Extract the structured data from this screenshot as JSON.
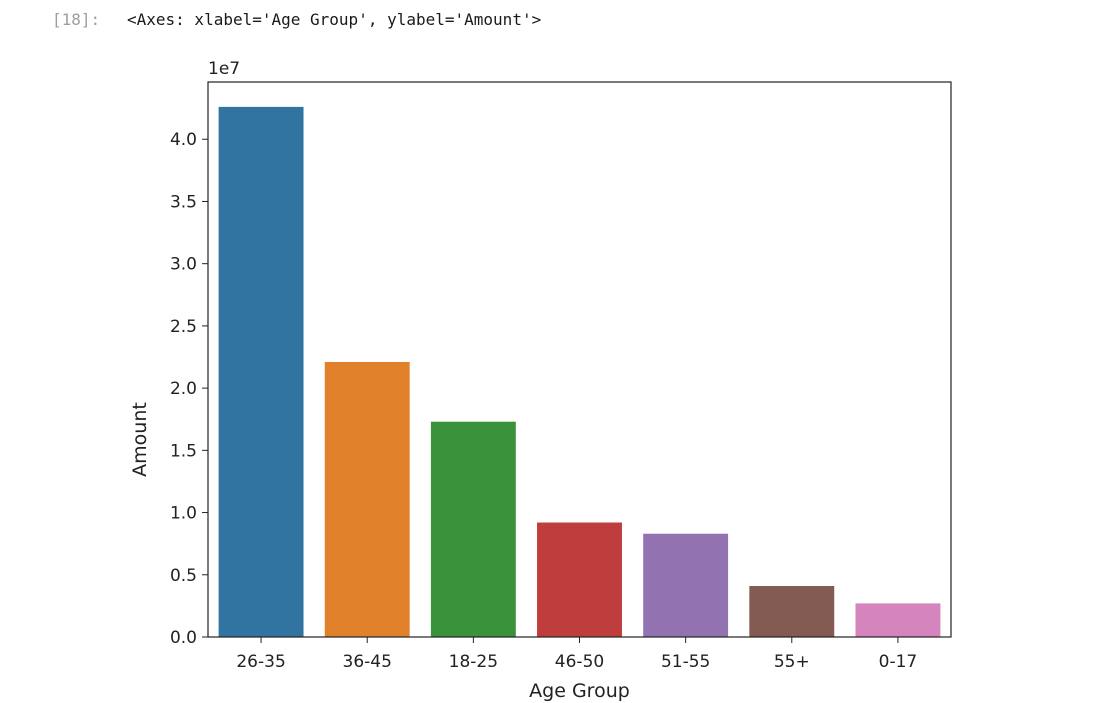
{
  "cell": {
    "prompt": "[18]:",
    "output_text": "<Axes: xlabel='Age Group', ylabel='Amount'>"
  },
  "chart_data": {
    "type": "bar",
    "categories": [
      "26-35",
      "36-45",
      "18-25",
      "46-50",
      "51-55",
      "55+",
      "0-17"
    ],
    "values": [
      42.6,
      22.1,
      17.3,
      9.2,
      8.3,
      4.1,
      2.7
    ],
    "scale_label": "1e7",
    "xlabel": "Age Group",
    "ylabel": "Amount",
    "ylim": [
      0,
      44.6
    ],
    "yticks": [
      0.0,
      0.5,
      1.0,
      1.5,
      2.0,
      2.5,
      3.0,
      3.5,
      4.0
    ],
    "ytick_labels": [
      "0.0",
      "0.5",
      "1.0",
      "1.5",
      "2.0",
      "2.5",
      "3.0",
      "3.5",
      "4.0"
    ],
    "colors": [
      "#3274a1",
      "#e1812c",
      "#3a923a",
      "#c03d3e",
      "#9372b2",
      "#845b53",
      "#d684bd"
    ],
    "grid": false,
    "legend": "none"
  }
}
